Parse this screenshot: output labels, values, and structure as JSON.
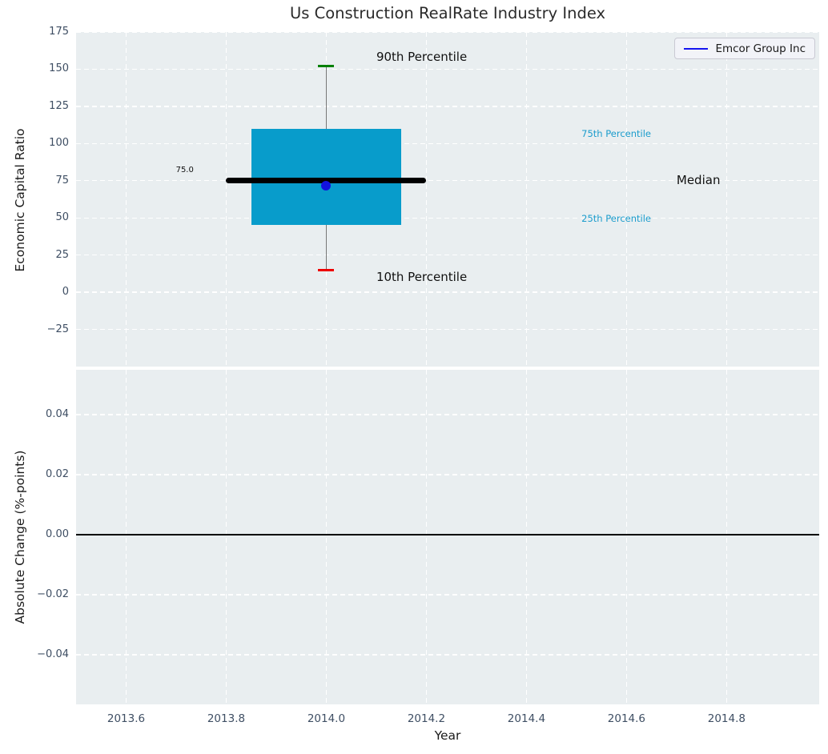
{
  "figure": {
    "title": "Us Construction RealRate Industry Index",
    "legend": {
      "label": "Emcor Group Inc"
    }
  },
  "colors": {
    "figure_bg": "#ffffff",
    "plot_bg": "#e9eef0",
    "grid": "#ffffff",
    "title_text": "#2b2b2b",
    "tick_label": "#3e4e63",
    "axis_label": "#1a1a1a",
    "box_fill": "#089ccb",
    "median_line": "#000000",
    "whisker": "#777777",
    "cap_90th": "#008000",
    "cap_10th": "#ee0000",
    "company_dot": "#1212dd",
    "legend_line": "#1414f0",
    "annotation_dark": "#111111",
    "annotation_cyan": "#1b9ccc",
    "zero_line": "#000000"
  },
  "chart_data": [
    {
      "type": "boxplot",
      "title": "Us Construction RealRate Industry Index",
      "ylabel": "Economic Capital Ratio",
      "xlim": [
        2013.5,
        2014.985
      ],
      "ylim": [
        -50,
        175
      ],
      "ytick_values": [
        175,
        150,
        125,
        100,
        75,
        50,
        25,
        0,
        -25
      ],
      "ytick_labels": [
        "175",
        "150",
        "125",
        "100",
        "75",
        "50",
        "25",
        "0",
        "−25"
      ],
      "xtick_values": [
        2013.6,
        2013.8,
        2014.0,
        2014.2,
        2014.4,
        2014.6,
        2014.8
      ],
      "grid": true,
      "legend": {
        "label": "Emcor Group Inc",
        "position": "upper right"
      },
      "box": {
        "x_center": 2014.0,
        "box_left": 2013.85,
        "box_right": 2014.15,
        "median_left": 2013.8,
        "median_right": 2014.2,
        "p10": 15,
        "q1": 45.5,
        "median": 75.0,
        "q3": 110,
        "p90": 152,
        "company_value": 71.5,
        "company_name": "Emcor Group Inc"
      },
      "median_value_label": "75.0",
      "annotations": [
        {
          "text": "90th Percentile",
          "x": 2014.1,
          "y": 157.5,
          "ha": "left",
          "size": 15,
          "color_key": "annotation_dark"
        },
        {
          "text": "10th Percentile",
          "x": 2014.1,
          "y": 9.5,
          "ha": "left",
          "size": 15,
          "color_key": "annotation_dark"
        },
        {
          "text": "75th Percentile",
          "x": 2014.51,
          "y": 106,
          "ha": "left",
          "size": 11.5,
          "color_key": "annotation_cyan"
        },
        {
          "text": "25th Percentile",
          "x": 2014.51,
          "y": 49,
          "ha": "left",
          "size": 11.5,
          "color_key": "annotation_cyan"
        },
        {
          "text": "Median",
          "x": 2014.7,
          "y": 74.5,
          "ha": "left",
          "size": 15,
          "color_key": "annotation_dark"
        },
        {
          "text": "75.0",
          "x": 2013.735,
          "y": 82,
          "ha": "right",
          "size": 10,
          "color_key": "annotation_dark"
        }
      ]
    },
    {
      "type": "line",
      "ylabel": "Absolute Change (%-points)",
      "xlabel": "Year",
      "xlim": [
        2013.5,
        2014.985
      ],
      "ylim": [
        -0.0566,
        0.055
      ],
      "ytick_values": [
        0.04,
        0.02,
        0.0,
        -0.02,
        -0.04
      ],
      "ytick_labels": [
        "0.04",
        "0.02",
        "0.00",
        "−0.02",
        "−0.04"
      ],
      "xtick_values": [
        2013.6,
        2013.8,
        2014.0,
        2014.2,
        2014.4,
        2014.6,
        2014.8
      ],
      "xtick_labels": [
        "2013.6",
        "2013.8",
        "2014.0",
        "2014.2",
        "2014.4",
        "2014.6",
        "2014.8"
      ],
      "grid": true,
      "zero_line": 0.0,
      "series": []
    }
  ]
}
